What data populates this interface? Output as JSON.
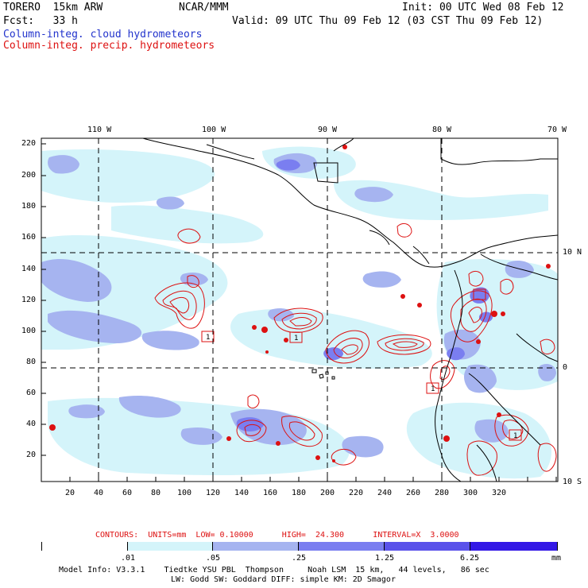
{
  "header": {
    "model": "TORERO  15km ARW",
    "org": "NCAR/MMM",
    "init": "Init: 00 UTC Wed 08 Feb 12",
    "forecast": "Fcst:   33 h",
    "valid": "Valid: 09 UTC Thu 09 Feb 12 (03 CST Thu 09 Feb 12)",
    "field1": "Column-integ. cloud hydrometeors",
    "field2": "Column-integ. precip. hydrometeors"
  },
  "map": {
    "top_longitudes": [
      "110 W",
      "100 W",
      "90 W",
      "80 W",
      "70 W"
    ],
    "right_latitudes": [
      "10 N",
      "0",
      "10 S"
    ],
    "left_ticks": [
      "220",
      "200",
      "180",
      "160",
      "140",
      "120",
      "100",
      "80",
      "60",
      "40",
      "20"
    ],
    "bottom_ticks": [
      "20",
      "40",
      "60",
      "80",
      "100",
      "120",
      "140",
      "160",
      "180",
      "200",
      "220",
      "240",
      "260",
      "280",
      "300",
      "320"
    ],
    "box_label": "1"
  },
  "contours": {
    "line": "CONTOURS:  UNITS=mm  LOW= 0.10000      HIGH=  24.300      INTERVAL=X  3.0000"
  },
  "colorbar": {
    "labels": [
      ".01",
      ".05",
      ".25",
      "1.25",
      "6.25"
    ],
    "units": "mm",
    "colors": [
      "#ffffff",
      "#d4f4fa",
      "#a6b4f0",
      "#7a7ef0",
      "#5a52ea",
      "#3318e6"
    ]
  },
  "footer": {
    "line1": "Model Info: V3.3.1    Tiedtke YSU PBL  Thompson     Noah LSM  15 km,   44 levels,   86 sec",
    "line2": "LW: Godd SW: Goddard DIFF: simple KM: 2D Smagor"
  },
  "colors": {
    "cloud_light": "#d4f4fa",
    "cloud_mid": "#a6b4f0",
    "cloud_dark": "#7a7ef0",
    "precip": "#dd1111"
  }
}
